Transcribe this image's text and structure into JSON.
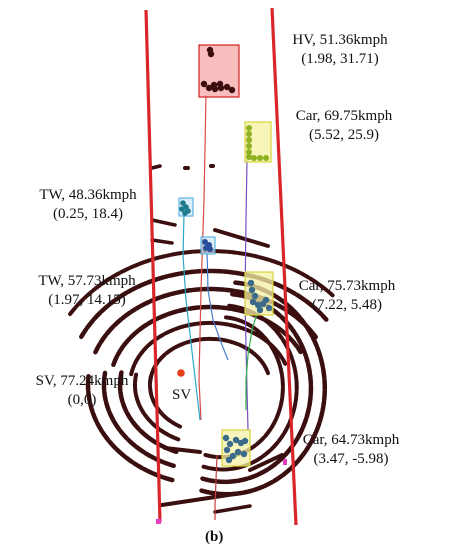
{
  "vehicles": [
    {
      "label": "HV, 51.36kmph",
      "coords": "(1.98, 31.71)",
      "box_color": "#f5a7a7",
      "box_stroke": "#d42020"
    },
    {
      "label": "Car, 69.75kmph",
      "coords": "(5.52, 25.9)",
      "box_color": "#f5f2a6",
      "box_stroke": "#d8d23a",
      "dot_color": "#8fb020"
    },
    {
      "label": "TW, 48.36kmph",
      "coords": "(0.25, 18.4)",
      "box_color": "#cfe6f5",
      "box_stroke": "#3fa9e0",
      "dot_color": "#1e7a8c"
    },
    {
      "label": "TW, 57.73kmph",
      "coords": "(1.97, 14.15)",
      "box_color": "#cfe6f5",
      "box_stroke": "#3fa9e0",
      "dot_color": "#2a4f9a"
    },
    {
      "label": "Car, 75.73kmph",
      "coords": "(7.22, 5.48)",
      "box_color": "#f5f2a6",
      "box_stroke": "#d8d23a",
      "dot_color": "#3a6b8a"
    },
    {
      "label": "SV, 77.24kmph",
      "coords": "(0,0)"
    },
    {
      "label": "Car, 64.73kmph",
      "coords": "(3.47, -5.98)",
      "box_color": "#f5f2a6",
      "box_stroke": "#d8d23a",
      "dot_color": "#3a6b8a"
    }
  ],
  "sv_marker_label": "SV",
  "caption": "(b)",
  "colors": {
    "road_edge": "#d8262b",
    "scan_points": "#3b0f10",
    "sv_dot": "#e83c1a",
    "traj_hv": "#d84a4a",
    "traj_car1": "#7a4fbf",
    "traj_tw1": "#2aa8c8",
    "traj_tw2": "#4a7fd0",
    "traj_car2": "#2fae4a",
    "traj_car3": "#c04040",
    "sv_traj": "#2aa8c8",
    "corner_mark": "#e040c0"
  }
}
